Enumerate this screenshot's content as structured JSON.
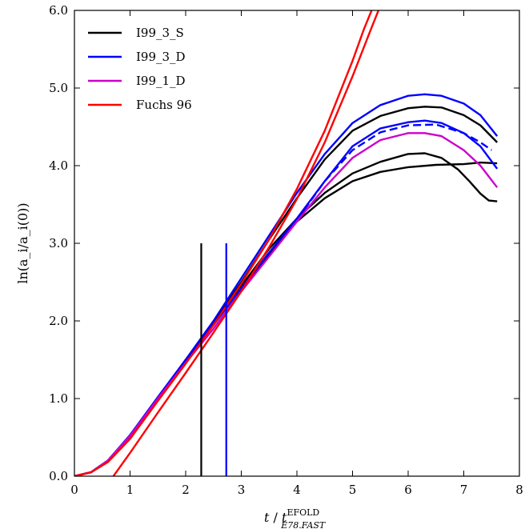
{
  "chart_data": {
    "type": "line",
    "xlim": [
      0,
      8
    ],
    "ylim": [
      0,
      6
    ],
    "xticks": [
      "0",
      "1",
      "2",
      "3",
      "4",
      "5",
      "6",
      "7",
      "8"
    ],
    "yticks": [
      "0.0",
      "1.0",
      "2.0",
      "3.0",
      "4.0",
      "5.0",
      "6.0"
    ],
    "xlabel": {
      "italic_t": "t",
      "slash": " / ",
      "t2": "t",
      "sup": "EFOLD",
      "sub": "E78.FAST"
    },
    "ylabel": "ln(a_i/a_i(0))",
    "legend": {
      "placement": "top-left",
      "entries": [
        {
          "label": "I99_3_S",
          "color": "#000000"
        },
        {
          "label": "I99_3_D",
          "color": "#0000ff"
        },
        {
          "label": "I99_1_D",
          "color": "#cc00cc"
        },
        {
          "label": "Fuchs 96",
          "color": "#ff0000"
        }
      ]
    },
    "series": [
      {
        "color": "#000000",
        "dashed": false,
        "points": [
          [
            0,
            0
          ],
          [
            0.3,
            0.05
          ],
          [
            0.6,
            0.2
          ],
          [
            1,
            0.52
          ],
          [
            1.5,
            1.0
          ],
          [
            2,
            1.5
          ],
          [
            2.5,
            1.95
          ],
          [
            3,
            2.45
          ],
          [
            3.5,
            2.93
          ],
          [
            4,
            3.32
          ],
          [
            4.5,
            3.65
          ],
          [
            5,
            3.9
          ],
          [
            5.5,
            4.05
          ],
          [
            6,
            4.15
          ],
          [
            6.3,
            4.16
          ],
          [
            6.6,
            4.1
          ],
          [
            6.9,
            3.95
          ],
          [
            7.1,
            3.8
          ],
          [
            7.3,
            3.64
          ],
          [
            7.45,
            3.55
          ],
          [
            7.6,
            3.54
          ]
        ]
      },
      {
        "color": "#000000",
        "dashed": false,
        "points": [
          [
            0,
            0
          ],
          [
            0.3,
            0.05
          ],
          [
            0.6,
            0.2
          ],
          [
            1,
            0.52
          ],
          [
            1.5,
            1.0
          ],
          [
            2,
            1.48
          ],
          [
            2.5,
            1.95
          ],
          [
            3,
            2.42
          ],
          [
            3.5,
            2.85
          ],
          [
            4,
            3.28
          ],
          [
            4.5,
            3.58
          ],
          [
            5,
            3.8
          ],
          [
            5.5,
            3.92
          ],
          [
            6,
            3.98
          ],
          [
            6.5,
            4.01
          ],
          [
            7,
            4.02
          ],
          [
            7.3,
            4.04
          ],
          [
            7.6,
            4.03
          ]
        ]
      },
      {
        "color": "#000000",
        "dashed": false,
        "points": [
          [
            0,
            0
          ],
          [
            0.3,
            0.05
          ],
          [
            0.6,
            0.2
          ],
          [
            1,
            0.52
          ],
          [
            1.5,
            1.0
          ],
          [
            2,
            1.48
          ],
          [
            2.5,
            1.98
          ],
          [
            3,
            2.5
          ],
          [
            3.5,
            3.05
          ],
          [
            4,
            3.58
          ],
          [
            4.5,
            4.08
          ],
          [
            5,
            4.45
          ],
          [
            5.5,
            4.64
          ],
          [
            6,
            4.74
          ],
          [
            6.3,
            4.76
          ],
          [
            6.6,
            4.75
          ],
          [
            7,
            4.65
          ],
          [
            7.3,
            4.52
          ],
          [
            7.6,
            4.3
          ]
        ]
      },
      {
        "color": "#0000ff",
        "dashed": false,
        "points": [
          [
            0,
            0
          ],
          [
            0.3,
            0.05
          ],
          [
            0.6,
            0.2
          ],
          [
            1,
            0.53
          ],
          [
            1.5,
            1.02
          ],
          [
            2,
            1.5
          ],
          [
            2.5,
            2.0
          ],
          [
            3,
            2.55
          ],
          [
            3.5,
            3.1
          ],
          [
            4,
            3.65
          ],
          [
            4.5,
            4.15
          ],
          [
            5,
            4.55
          ],
          [
            5.5,
            4.78
          ],
          [
            6,
            4.9
          ],
          [
            6.3,
            4.92
          ],
          [
            6.6,
            4.9
          ],
          [
            7,
            4.8
          ],
          [
            7.3,
            4.65
          ],
          [
            7.6,
            4.38
          ]
        ]
      },
      {
        "color": "#0000ff",
        "dashed": false,
        "points": [
          [
            0,
            0
          ],
          [
            0.3,
            0.05
          ],
          [
            0.6,
            0.2
          ],
          [
            1,
            0.53
          ],
          [
            1.5,
            1.0
          ],
          [
            2,
            1.48
          ],
          [
            2.5,
            1.95
          ],
          [
            3,
            2.42
          ],
          [
            3.5,
            2.88
          ],
          [
            4,
            3.32
          ],
          [
            4.5,
            3.8
          ],
          [
            5,
            4.25
          ],
          [
            5.5,
            4.48
          ],
          [
            6,
            4.56
          ],
          [
            6.3,
            4.58
          ],
          [
            6.6,
            4.55
          ],
          [
            7,
            4.42
          ],
          [
            7.3,
            4.25
          ],
          [
            7.6,
            3.96
          ]
        ]
      },
      {
        "color": "#0000ff",
        "dashed": true,
        "points": [
          [
            4,
            3.3
          ],
          [
            4.5,
            3.8
          ],
          [
            5,
            4.2
          ],
          [
            5.5,
            4.43
          ],
          [
            6,
            4.52
          ],
          [
            6.5,
            4.53
          ],
          [
            7,
            4.42
          ],
          [
            7.3,
            4.3
          ],
          [
            7.5,
            4.2
          ]
        ]
      },
      {
        "color": "#cc00cc",
        "dashed": false,
        "points": [
          [
            0,
            0
          ],
          [
            0.3,
            0.05
          ],
          [
            0.6,
            0.2
          ],
          [
            1,
            0.52
          ],
          [
            1.5,
            1.0
          ],
          [
            2,
            1.46
          ],
          [
            2.5,
            1.9
          ],
          [
            3,
            2.38
          ],
          [
            3.5,
            2.83
          ],
          [
            4,
            3.28
          ],
          [
            4.5,
            3.72
          ],
          [
            5,
            4.1
          ],
          [
            5.5,
            4.33
          ],
          [
            6,
            4.42
          ],
          [
            6.3,
            4.42
          ],
          [
            6.6,
            4.38
          ],
          [
            7,
            4.2
          ],
          [
            7.3,
            4.0
          ],
          [
            7.6,
            3.72
          ]
        ]
      },
      {
        "color": "#ff0000",
        "dashed": false,
        "points": [
          [
            0,
            0
          ],
          [
            0.3,
            0.05
          ],
          [
            0.6,
            0.18
          ],
          [
            1,
            0.48
          ],
          [
            1.5,
            0.97
          ],
          [
            2,
            1.45
          ],
          [
            2.5,
            1.95
          ],
          [
            3,
            2.48
          ],
          [
            3.5,
            3.05
          ],
          [
            4,
            3.7
          ],
          [
            4.5,
            4.45
          ],
          [
            5,
            5.35
          ],
          [
            5.2,
            5.75
          ],
          [
            5.4,
            6.1
          ]
        ]
      },
      {
        "color": "#ff0000",
        "dashed": false,
        "points": [
          [
            0.7,
            0
          ],
          [
            1,
            0.3
          ],
          [
            1.5,
            0.82
          ],
          [
            2,
            1.33
          ],
          [
            2.5,
            1.85
          ],
          [
            3,
            2.38
          ],
          [
            3.5,
            2.95
          ],
          [
            4,
            3.57
          ],
          [
            4.5,
            4.3
          ],
          [
            5,
            5.15
          ],
          [
            5.3,
            5.7
          ],
          [
            5.55,
            6.15
          ]
        ]
      }
    ],
    "vlines": [
      {
        "x": 2.28,
        "y0": 0,
        "y1": 3.0,
        "color": "#000000"
      },
      {
        "x": 2.73,
        "y0": 0,
        "y1": 3.0,
        "color": "#0000ff"
      }
    ]
  }
}
